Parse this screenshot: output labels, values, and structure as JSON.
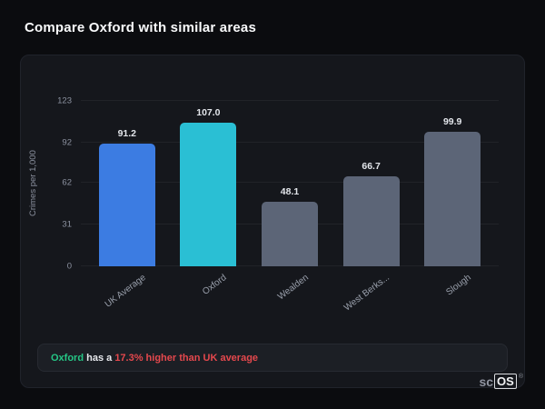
{
  "page": {
    "title": "Compare Oxford with similar areas"
  },
  "chart_data": {
    "type": "bar",
    "categories": [
      "UK Average",
      "Oxford",
      "Wealden",
      "West Berks...",
      "Slough"
    ],
    "values": [
      91.2,
      107.0,
      48.1,
      66.7,
      99.9
    ],
    "value_labels": [
      "91.2",
      "107.0",
      "48.1",
      "66.7",
      "99.9"
    ],
    "bar_colors": [
      "#3c7ce2",
      "#2abfd4",
      "#5c6577",
      "#5c6577",
      "#5c6577"
    ],
    "ylabel": "Crimes per 1,000",
    "yticks": [
      0,
      31,
      62,
      92,
      123
    ],
    "ylim": [
      0,
      123
    ],
    "grid": true,
    "legend": false
  },
  "annotation": {
    "subject": "Oxford",
    "middle": " has a ",
    "highlight": "17.3% higher than UK average",
    "subject_color": "#25c685",
    "highlight_color": "#e5484d"
  },
  "logo": {
    "prefix": "sc",
    "boxed": "OS",
    "registered": "®"
  }
}
